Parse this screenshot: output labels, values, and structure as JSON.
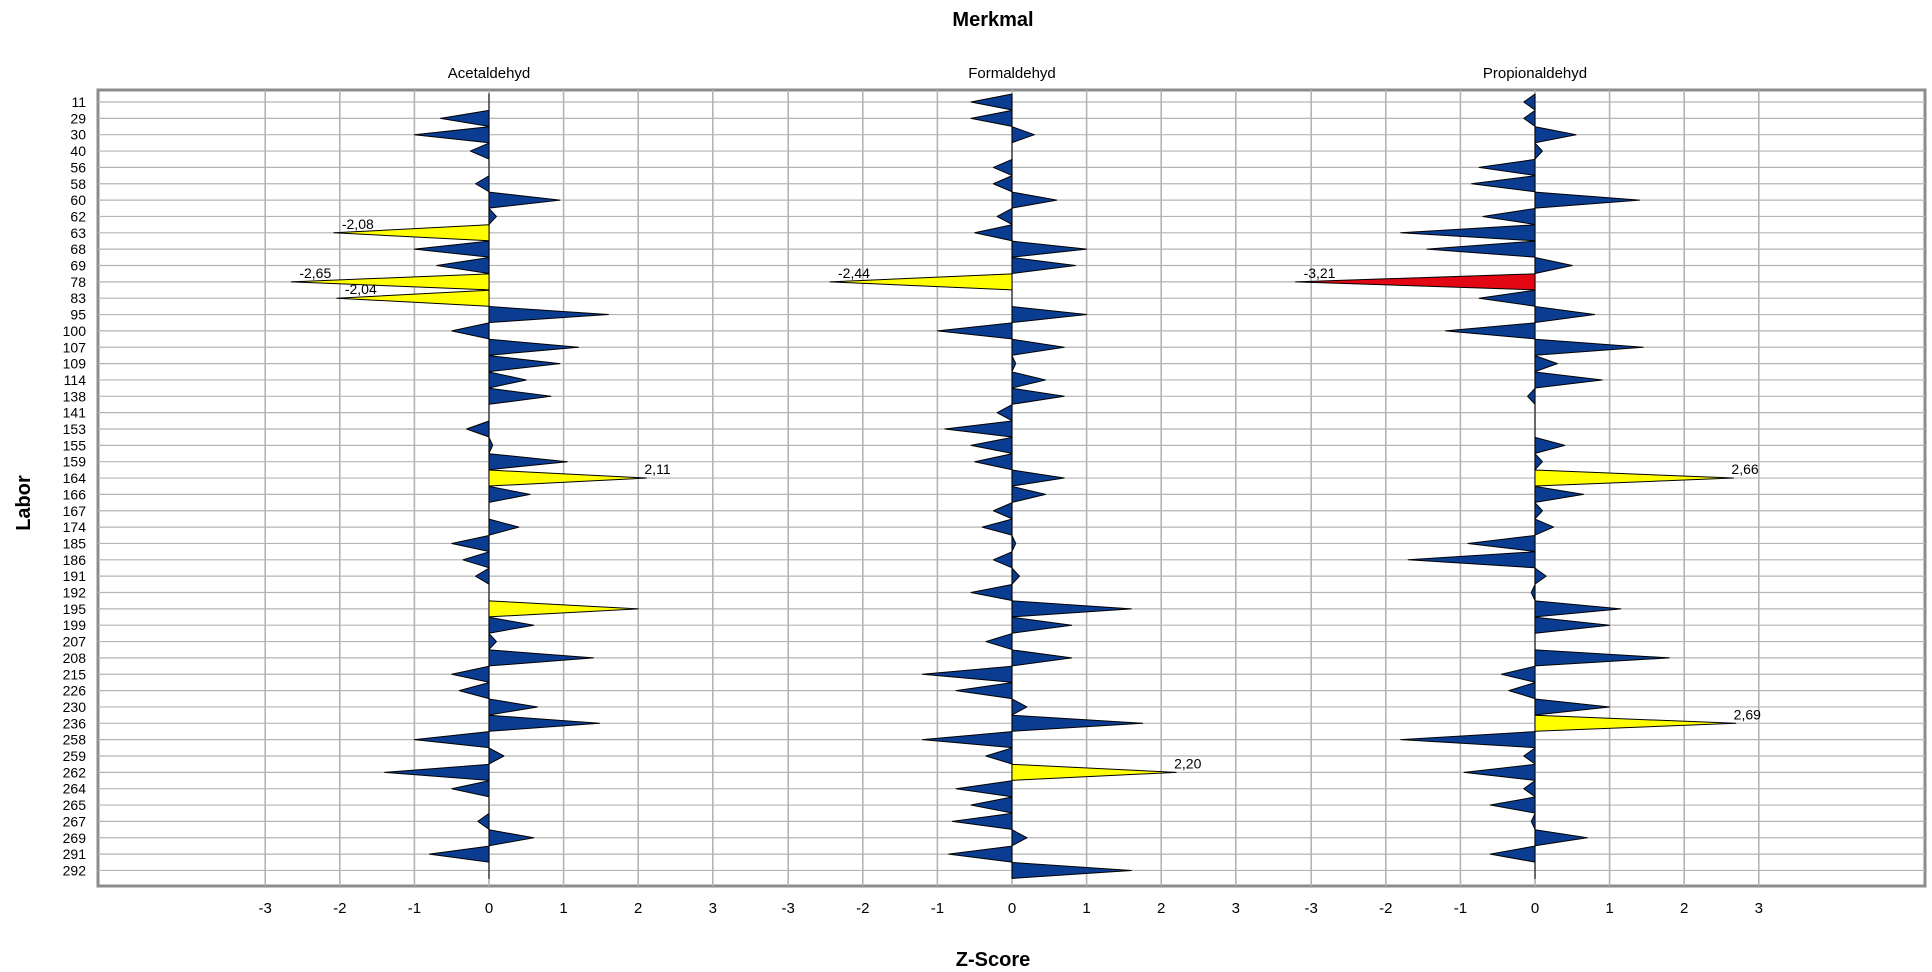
{
  "chart_data": {
    "type": "area",
    "title": "Merkmal",
    "xlabel": "Z-Score",
    "ylabel": "Labor",
    "xlim": [
      -3,
      3
    ],
    "xticks": [
      "-3",
      "-2",
      "-1",
      "0",
      "1",
      "2",
      "3"
    ],
    "grid": true,
    "labs": [
      "11",
      "29",
      "30",
      "40",
      "56",
      "58",
      "60",
      "62",
      "63",
      "68",
      "69",
      "78",
      "83",
      "95",
      "100",
      "107",
      "109",
      "114",
      "138",
      "141",
      "153",
      "155",
      "159",
      "164",
      "166",
      "167",
      "174",
      "185",
      "186",
      "191",
      "192",
      "195",
      "199",
      "207",
      "208",
      "215",
      "226",
      "230",
      "236",
      "258",
      "259",
      "262",
      "264",
      "265",
      "267",
      "269",
      "291",
      "292"
    ],
    "panels": [
      {
        "name": "Acetaldehyd",
        "values": [
          0.0,
          -0.65,
          -1.0,
          -0.25,
          0.0,
          -0.18,
          0.95,
          0.1,
          -2.08,
          -1.0,
          -0.7,
          -2.65,
          -2.04,
          1.6,
          -0.5,
          1.2,
          0.95,
          0.5,
          0.83,
          0.0,
          -0.3,
          0.05,
          1.05,
          2.11,
          0.55,
          0.0,
          0.4,
          -0.5,
          -0.35,
          -0.18,
          0.0,
          2.0,
          0.6,
          0.1,
          1.4,
          -0.5,
          -0.4,
          0.65,
          1.48,
          -1.0,
          0.2,
          -1.4,
          -0.5,
          0.0,
          -0.15,
          0.6,
          -0.8,
          0.0
        ],
        "labels": [
          {
            "lab": "63",
            "text": "-2,08"
          },
          {
            "lab": "78",
            "text": "-2,65"
          },
          {
            "lab": "83",
            "text": "-2,04"
          },
          {
            "lab": "164",
            "text": "2,11"
          }
        ]
      },
      {
        "name": "Formaldehyd",
        "values": [
          -0.55,
          -0.55,
          0.3,
          0.0,
          -0.25,
          -0.25,
          0.6,
          -0.2,
          -0.5,
          1.0,
          0.85,
          -2.44,
          0.0,
          1.0,
          -1.0,
          0.7,
          0.05,
          0.45,
          0.7,
          -0.2,
          -0.9,
          -0.55,
          -0.5,
          0.7,
          0.45,
          -0.25,
          -0.4,
          0.05,
          -0.25,
          0.1,
          -0.55,
          1.6,
          0.8,
          -0.35,
          0.8,
          -1.2,
          -0.75,
          0.2,
          1.75,
          -1.2,
          -0.35,
          2.2,
          -0.75,
          -0.55,
          -0.8,
          0.2,
          -0.85,
          1.6
        ],
        "labels": [
          {
            "lab": "78",
            "text": "-2,44"
          },
          {
            "lab": "262",
            "text": "2,20"
          }
        ]
      },
      {
        "name": "Propionaldehyd",
        "values": [
          -0.15,
          -0.15,
          0.55,
          0.1,
          -0.75,
          -0.85,
          1.4,
          -0.7,
          -1.8,
          -1.45,
          0.5,
          -3.21,
          -0.75,
          0.8,
          -1.2,
          1.45,
          0.3,
          0.9,
          -0.1,
          0.0,
          0.0,
          0.4,
          0.1,
          2.66,
          0.65,
          0.1,
          0.25,
          -0.9,
          -1.7,
          0.15,
          -0.05,
          1.15,
          1.0,
          0.0,
          1.8,
          -0.45,
          -0.35,
          1.0,
          2.69,
          -1.8,
          -0.15,
          -0.95,
          -0.15,
          -0.6,
          -0.05,
          0.7,
          -0.6,
          0.0
        ],
        "labels": [
          {
            "lab": "78",
            "text": "-3,21"
          },
          {
            "lab": "164",
            "text": "2,66"
          },
          {
            "lab": "236",
            "text": "2,69"
          }
        ]
      }
    ],
    "colors": {
      "normal": "#0a3d91",
      "warning": "#ffff00",
      "action": "#e30613",
      "grid": "#b4b4b4",
      "frame": "#8c8c8c"
    }
  }
}
